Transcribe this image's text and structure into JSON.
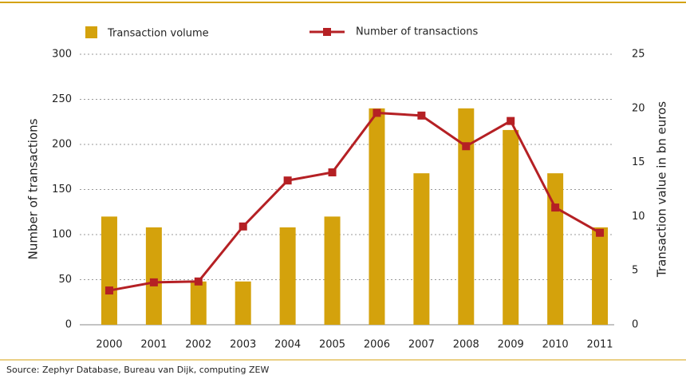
{
  "chart_data": {
    "type": "bar-line",
    "categories": [
      "2000",
      "2001",
      "2002",
      "2003",
      "2004",
      "2005",
      "2006",
      "2007",
      "2008",
      "2009",
      "2010",
      "2011"
    ],
    "series": [
      {
        "name": "Transaction volume",
        "type": "bar",
        "axis": "y2",
        "color": "#d4a20c",
        "values": [
          10,
          9,
          4,
          4,
          9,
          10,
          20,
          14,
          20,
          18,
          14,
          9
        ]
      },
      {
        "name": "Number of transactions",
        "type": "line",
        "axis": "y",
        "color": "#b52024",
        "values": [
          38,
          47,
          48,
          109,
          160,
          169,
          235,
          232,
          198,
          226,
          130,
          102
        ]
      }
    ],
    "y_label": "Number of transactions",
    "y2_label": "Transaction value in bn euros",
    "ylim": [
      0,
      300
    ],
    "yticks": [
      0,
      50,
      100,
      150,
      200,
      250,
      300
    ],
    "y2lim": [
      0,
      25
    ],
    "y2ticks": [
      0,
      5,
      10,
      15,
      20,
      25
    ],
    "grid": true,
    "source": "Source: Zephyr Database, Bureau van Dijk, computing ZEW"
  }
}
